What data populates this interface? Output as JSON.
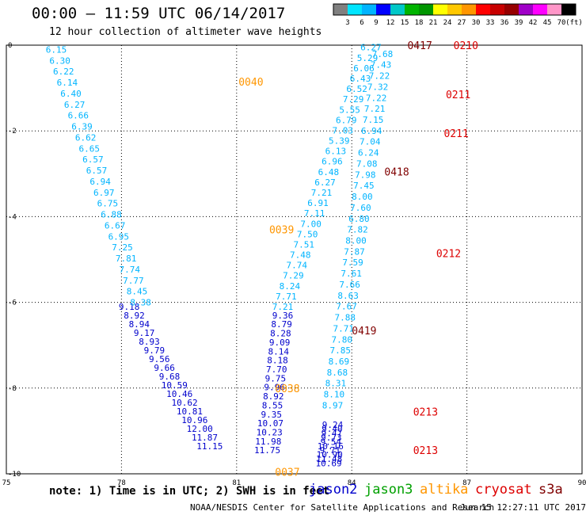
{
  "header": {
    "title": "00:00 – 11:59 UTC 06/14/2017",
    "subtitle": "12 hour collection of altimeter wave heights"
  },
  "colorbar": {
    "labels": [
      "3",
      "6",
      "9",
      "12",
      "15",
      "18",
      "21",
      "24",
      "27",
      "30",
      "33",
      "36",
      "39",
      "42",
      "45",
      "70"
    ],
    "unit": "(ft)",
    "colors": [
      "#808080",
      "#00e5ff",
      "#00b4ff",
      "#0000ff",
      "#00c8c8",
      "#00b400",
      "#009600",
      "#ffff00",
      "#ffc800",
      "#ff9600",
      "#ff0000",
      "#c80000",
      "#960000",
      "#a000c8",
      "#ff00ff",
      "#ff96c8",
      "#000000"
    ]
  },
  "footer": {
    "note": "note: 1) Time is in UTC; 2) SWH is in feet",
    "credit": "NOAA/NESDIS Center for Satellite Applications and Research",
    "timestamp": "Jun 15 12:27:11 UTC 2017"
  },
  "satellites": [
    {
      "name": "jason2",
      "color": "#0000cc"
    },
    {
      "name": "jason3",
      "color": "#00a000"
    },
    {
      "name": "altika",
      "color": "#ff9600"
    },
    {
      "name": "cryosat",
      "color": "#dd0000"
    },
    {
      "name": "s3a",
      "color": "#800000"
    }
  ],
  "chart_data": {
    "type": "scatter",
    "xlim": [
      75,
      90
    ],
    "ylim": [
      -10,
      0
    ],
    "x_ticks": [
      "75",
      "78",
      "81",
      "84",
      "87",
      "90"
    ],
    "y_ticks": [
      "0",
      "-2",
      "-4",
      "-6",
      "-8",
      "-10"
    ],
    "grid": true,
    "tracks": [
      {
        "name": "jason2",
        "color": "#0000cc",
        "start": [
          80.3,
          -9.35
        ],
        "end": [
          78.2,
          -6.1
        ],
        "values": [
          "11.15",
          "11.87",
          "12.00",
          "10.96",
          "10.81",
          "10.62",
          "10.46",
          "10.59",
          "9.68",
          "9.66",
          "9.56",
          "9.79",
          "8.93",
          "9.17",
          "8.94",
          "8.92",
          "9.18"
        ]
      },
      {
        "name": "jason3_track1",
        "color": "#00b4ff",
        "start": [
          78.5,
          -6.0
        ],
        "end": [
          76.3,
          -0.1
        ],
        "values": [
          "8.38",
          "8.45",
          "7.77",
          "7.74",
          "7.81",
          "7.25",
          "6.95",
          "6.67",
          "6.88",
          "6.75",
          "6.97",
          "6.94",
          "6.57",
          "6.57",
          "6.65",
          "6.62",
          "6.39",
          "6.66",
          "6.27",
          "6.40",
          "6.14",
          "6.22",
          "6.30",
          "6.15"
        ]
      },
      {
        "name": "jason2_track2",
        "color": "#0000cc",
        "start": [
          81.8,
          -9.45
        ],
        "end": [
          82.2,
          -6.3
        ],
        "values": [
          "11.75",
          "11.98",
          "10.23",
          "10.07",
          "9.35",
          "8.55",
          "8.92",
          "9.96",
          "9.75",
          "7.70",
          "8.18",
          "8.14",
          "9.09",
          "8.28",
          "8.79",
          "9.36"
        ]
      },
      {
        "name": "jason3_track2",
        "color": "#00b4ff",
        "start": [
          82.2,
          -6.1
        ],
        "end": [
          84.5,
          -0.05
        ],
        "values": [
          "7.21",
          "7.71",
          "8.24",
          "7.29",
          "7.74",
          "7.48",
          "7.51",
          "7.50",
          "7.00",
          "7.11",
          "6.91",
          "7.21",
          "6.27",
          "6.48",
          "6.96",
          "6.13",
          "5.39",
          "7.03",
          "6.79",
          "5.55",
          "7.29",
          "6.52",
          "6.43",
          "6.06",
          "5.29",
          "6.27"
        ]
      },
      {
        "name": "jason2_track3",
        "color": "#0000cc",
        "start": [
          83.4,
          -9.75
        ],
        "end": [
          83.5,
          -8.85
        ],
        "values": [
          "10.69",
          "11.48",
          "10.90",
          "9.71",
          "10.16",
          "9.54",
          "9.73",
          "9.47",
          "9.40",
          "9.24"
        ]
      },
      {
        "name": "jason3_track3",
        "color": "#00b4ff",
        "start": [
          83.5,
          -8.4
        ],
        "end": [
          84.8,
          -0.2
        ],
        "values": [
          "8.97",
          "8.10",
          "8.31",
          "8.68",
          "8.69",
          "7.85",
          "7.80",
          "7.71",
          "7.88",
          "7.67",
          "8.63",
          "7.66",
          "7.61",
          "7.59",
          "7.87",
          "8.00",
          "7.82",
          "6.80",
          "7.60",
          "8.00",
          "7.45",
          "7.98",
          "7.08",
          "6.24",
          "7.04",
          "6.94",
          "7.15",
          "7.21",
          "7.22",
          "7.32",
          "7.22",
          "7.43",
          "7.68"
        ]
      }
    ],
    "labels": [
      {
        "text": "0040",
        "color": "#ff9600",
        "x": 81.05,
        "y": -0.85
      },
      {
        "text": "0039",
        "color": "#ff9600",
        "x": 81.85,
        "y": -4.3
      },
      {
        "text": "0038",
        "color": "#ff9600",
        "x": 82.0,
        "y": -8.0
      },
      {
        "text": "0037",
        "color": "#ff9600",
        "x": 82.0,
        "y": -9.95
      },
      {
        "text": "0419",
        "color": "#800000",
        "x": 84.0,
        "y": -6.65
      },
      {
        "text": "0418",
        "color": "#800000",
        "x": 84.85,
        "y": -2.95
      },
      {
        "text": "0417",
        "color": "#800000",
        "x": 85.45,
        "y": 0.0
      },
      {
        "text": "0210",
        "color": "#dd0000",
        "x": 86.65,
        "y": 0.0
      },
      {
        "text": "0211",
        "color": "#dd0000",
        "x": 86.45,
        "y": -1.15
      },
      {
        "text": "0211",
        "color": "#dd0000",
        "x": 86.4,
        "y": -2.05
      },
      {
        "text": "0212",
        "color": "#dd0000",
        "x": 86.2,
        "y": -4.85
      },
      {
        "text": "0213",
        "color": "#dd0000",
        "x": 85.6,
        "y": -8.55
      },
      {
        "text": "0213",
        "color": "#dd0000",
        "x": 85.6,
        "y": -9.45
      }
    ]
  }
}
